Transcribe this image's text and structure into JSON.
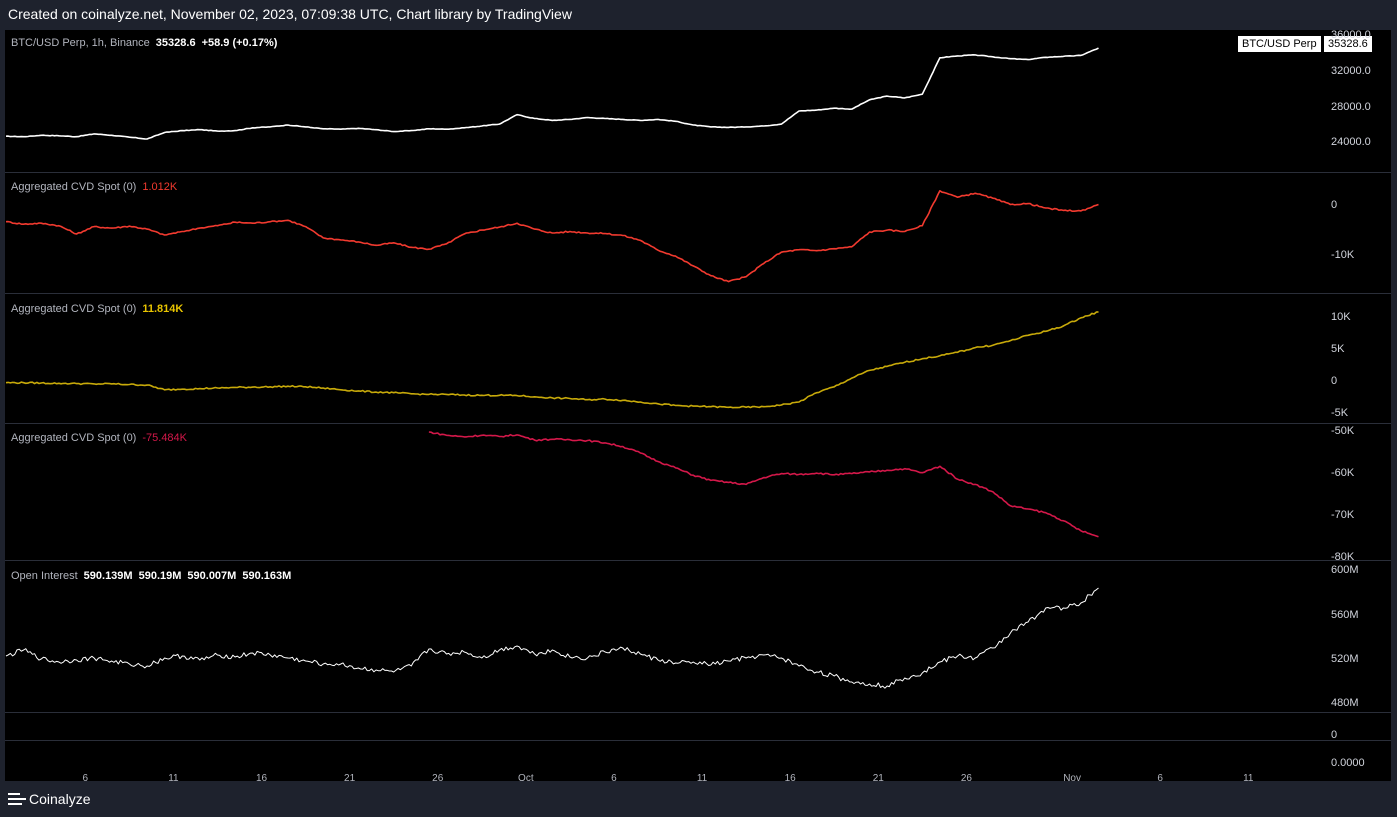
{
  "header": {
    "text": "Created on coinalyze.net, November 02, 2023, 07:09:38 UTC, Chart library by TradingView"
  },
  "footer": {
    "brand": "Coinalyze"
  },
  "colors": {
    "price": "#ffffff",
    "cvd1": "#f23a2f",
    "cvd2": "#c8aa0a",
    "cvd3": "#d4184a",
    "oi": "#ffffff"
  },
  "chart_data": [
    {
      "type": "line",
      "pane": "price",
      "label_name": "BTC/USD Perp, 1h, Binance",
      "last_value": "35328.6",
      "change": "+58.9 (+0.17%)",
      "tag_label": "BTC/USD Perp",
      "tag_value": "35328.6",
      "y_ticks": [
        "36000.0",
        "32000.0",
        "28000.0",
        "24000.0"
      ],
      "ylim": [
        22500,
        36200
      ],
      "x": [
        0,
        1,
        2,
        3,
        4,
        5,
        6,
        7,
        8,
        9,
        10,
        11,
        12,
        13,
        14,
        15,
        16,
        17,
        18,
        19,
        20,
        21,
        22,
        23,
        24,
        25,
        26,
        27,
        28,
        29,
        30,
        31,
        32,
        33,
        34,
        35,
        36,
        37,
        38,
        39,
        40,
        41,
        42,
        43,
        44,
        45,
        46,
        47,
        48,
        49,
        50,
        51,
        52,
        53,
        54,
        55,
        56,
        57,
        58,
        59,
        60,
        61,
        62
      ],
      "values": [
        25900,
        25850,
        26000,
        25950,
        25850,
        26150,
        26000,
        25800,
        25600,
        26300,
        26500,
        26600,
        26450,
        26500,
        26800,
        26900,
        27100,
        26900,
        26700,
        26650,
        26750,
        26600,
        26400,
        26500,
        26700,
        26650,
        26800,
        27000,
        27200,
        28200,
        27800,
        27600,
        27700,
        27900,
        27800,
        27700,
        27600,
        27700,
        27500,
        27100,
        26900,
        26850,
        26900,
        27000,
        27200,
        28600,
        28700,
        28900,
        28800,
        29800,
        30200,
        30000,
        30400,
        34300,
        34500,
        34600,
        34400,
        34200,
        34100,
        34350,
        34450,
        34550,
        35330
      ]
    },
    {
      "type": "line",
      "pane": "cvd1",
      "label_name": "Aggregated CVD Spot (0)",
      "last_value": "1.012K",
      "y_ticks": [
        "0",
        "-10K"
      ],
      "ylim": [
        -16000,
        6000
      ],
      "x": [
        0,
        1,
        2,
        3,
        4,
        5,
        6,
        7,
        8,
        9,
        10,
        11,
        12,
        13,
        14,
        15,
        16,
        17,
        18,
        19,
        20,
        21,
        22,
        23,
        24,
        25,
        26,
        27,
        28,
        29,
        30,
        31,
        32,
        33,
        34,
        35,
        36,
        37,
        38,
        39,
        40,
        41,
        42,
        43,
        44,
        45,
        46,
        47,
        48,
        49,
        50,
        51,
        52,
        53,
        54,
        55,
        56,
        57,
        58,
        59,
        60,
        61,
        62
      ],
      "values": [
        -2500,
        -3000,
        -2800,
        -3300,
        -5000,
        -3500,
        -3800,
        -3400,
        -4000,
        -5200,
        -4500,
        -3800,
        -3300,
        -2600,
        -2800,
        -2500,
        -2200,
        -3500,
        -5800,
        -6200,
        -6600,
        -7300,
        -6800,
        -7700,
        -8100,
        -7000,
        -5000,
        -4200,
        -3600,
        -2800,
        -4000,
        -4800,
        -4500,
        -4800,
        -4900,
        -5300,
        -6300,
        -8300,
        -9500,
        -11500,
        -13500,
        -14700,
        -13700,
        -11000,
        -8700,
        -8200,
        -8400,
        -8000,
        -7600,
        -4600,
        -4200,
        -4500,
        -3300,
        3800,
        2500,
        3300,
        2300,
        1000,
        1200,
        300,
        -200,
        -300,
        1000
      ]
    },
    {
      "type": "line",
      "pane": "cvd2",
      "label_name": "Aggregated CVD Spot (0)",
      "last_value": "11.814K",
      "y_ticks": [
        "10K",
        "5K",
        "0",
        "-5K"
      ],
      "ylim": [
        -6500,
        13500
      ],
      "x": [
        0,
        1,
        2,
        3,
        4,
        5,
        6,
        7,
        8,
        9,
        10,
        11,
        12,
        13,
        14,
        15,
        16,
        17,
        18,
        19,
        20,
        21,
        22,
        23,
        24,
        25,
        26,
        27,
        28,
        29,
        30,
        31,
        32,
        33,
        34,
        35,
        36,
        37,
        38,
        39,
        40,
        41,
        42,
        43,
        44,
        45,
        46,
        47,
        48,
        49,
        50,
        51,
        52,
        53,
        54,
        55,
        56,
        57,
        58,
        59,
        60,
        61,
        62
      ],
      "values": [
        -300,
        -300,
        -350,
        -400,
        -450,
        -500,
        -500,
        -600,
        -700,
        -1500,
        -1400,
        -1300,
        -1200,
        -1100,
        -1050,
        -1000,
        -900,
        -1000,
        -1200,
        -1500,
        -1700,
        -1900,
        -2000,
        -2200,
        -2300,
        -2300,
        -2400,
        -2450,
        -2450,
        -2500,
        -2700,
        -2900,
        -3000,
        -3200,
        -3100,
        -3300,
        -3600,
        -3900,
        -4200,
        -4300,
        -4400,
        -4500,
        -4500,
        -4400,
        -4100,
        -3600,
        -2000,
        -1000,
        500,
        1800,
        2500,
        3200,
        3800,
        4300,
        4900,
        5700,
        6100,
        6900,
        7800,
        8500,
        9400,
        10800,
        11814
      ]
    },
    {
      "type": "line",
      "pane": "cvd3",
      "label_name": "Aggregated CVD Spot (0)",
      "last_value": "-75.484K",
      "y_ticks": [
        "-50K",
        "-60K",
        "-70K",
        "-80K"
      ],
      "ylim": [
        -80500,
        -48500
      ],
      "x": [
        24,
        25,
        26,
        27,
        28,
        29,
        30,
        31,
        32,
        33,
        34,
        35,
        36,
        37,
        38,
        39,
        40,
        41,
        42,
        43,
        44,
        45,
        46,
        47,
        48,
        49,
        50,
        51,
        52,
        53,
        54,
        55,
        56,
        57,
        58,
        59,
        60,
        61,
        62
      ],
      "values": [
        -49500,
        -50300,
        -50700,
        -50300,
        -50600,
        -50200,
        -51500,
        -51300,
        -51400,
        -51600,
        -52200,
        -53100,
        -54700,
        -56800,
        -58400,
        -60200,
        -61500,
        -62000,
        -62500,
        -60800,
        -59800,
        -60000,
        -59700,
        -60100,
        -59800,
        -59400,
        -59000,
        -58600,
        -59600,
        -58000,
        -61200,
        -62500,
        -64300,
        -67800,
        -68600,
        -69500,
        -71500,
        -74000,
        -75484
      ]
    },
    {
      "type": "line",
      "pane": "oi",
      "label_name": "Open Interest",
      "ohlc": [
        "590.139M",
        "590.19M",
        "590.007M",
        "590.163M"
      ],
      "y_ticks": [
        "600M",
        "560M",
        "520M",
        "480M"
      ],
      "ylim": [
        470,
        610
      ],
      "x": [
        0,
        1,
        2,
        3,
        4,
        5,
        6,
        7,
        8,
        9,
        10,
        11,
        12,
        13,
        14,
        15,
        16,
        17,
        18,
        19,
        20,
        21,
        22,
        23,
        24,
        25,
        26,
        27,
        28,
        29,
        30,
        31,
        32,
        33,
        34,
        35,
        36,
        37,
        38,
        39,
        40,
        41,
        42,
        43,
        44,
        45,
        46,
        47,
        48,
        49,
        50,
        51,
        52,
        53,
        54,
        55,
        56,
        57,
        58,
        59,
        60,
        61,
        62
      ],
      "values": [
        522,
        528,
        519,
        516,
        518,
        520,
        517,
        514,
        512,
        520,
        522,
        518,
        523,
        521,
        525,
        523,
        520,
        517,
        514,
        514,
        510,
        508,
        506,
        512,
        529,
        524,
        526,
        520,
        528,
        532,
        524,
        528,
        521,
        520,
        526,
        530,
        524,
        518,
        515,
        516,
        513,
        517,
        520,
        523,
        520,
        512,
        506,
        502,
        496,
        494,
        492,
        500,
        505,
        516,
        522,
        520,
        530,
        545,
        556,
        570,
        570,
        575,
        590
      ]
    },
    {
      "type": "line",
      "pane": "bottom",
      "y_ticks": [
        "0",
        "0.0000"
      ],
      "x_ticks": [
        {
          "label": "6",
          "pos": 4.5
        },
        {
          "label": "11",
          "pos": 9.5
        },
        {
          "label": "16",
          "pos": 14.5
        },
        {
          "label": "21",
          "pos": 19.5
        },
        {
          "label": "26",
          "pos": 24.5
        },
        {
          "label": "Oct",
          "pos": 29.5
        },
        {
          "label": "6",
          "pos": 34.5
        },
        {
          "label": "11",
          "pos": 39.5
        },
        {
          "label": "16",
          "pos": 44.5
        },
        {
          "label": "21",
          "pos": 49.5
        },
        {
          "label": "26",
          "pos": 54.5
        },
        {
          "label": "Nov",
          "pos": 60.5
        },
        {
          "label": "6",
          "pos": 65.5
        },
        {
          "label": "11",
          "pos": 70.5
        }
      ]
    }
  ]
}
